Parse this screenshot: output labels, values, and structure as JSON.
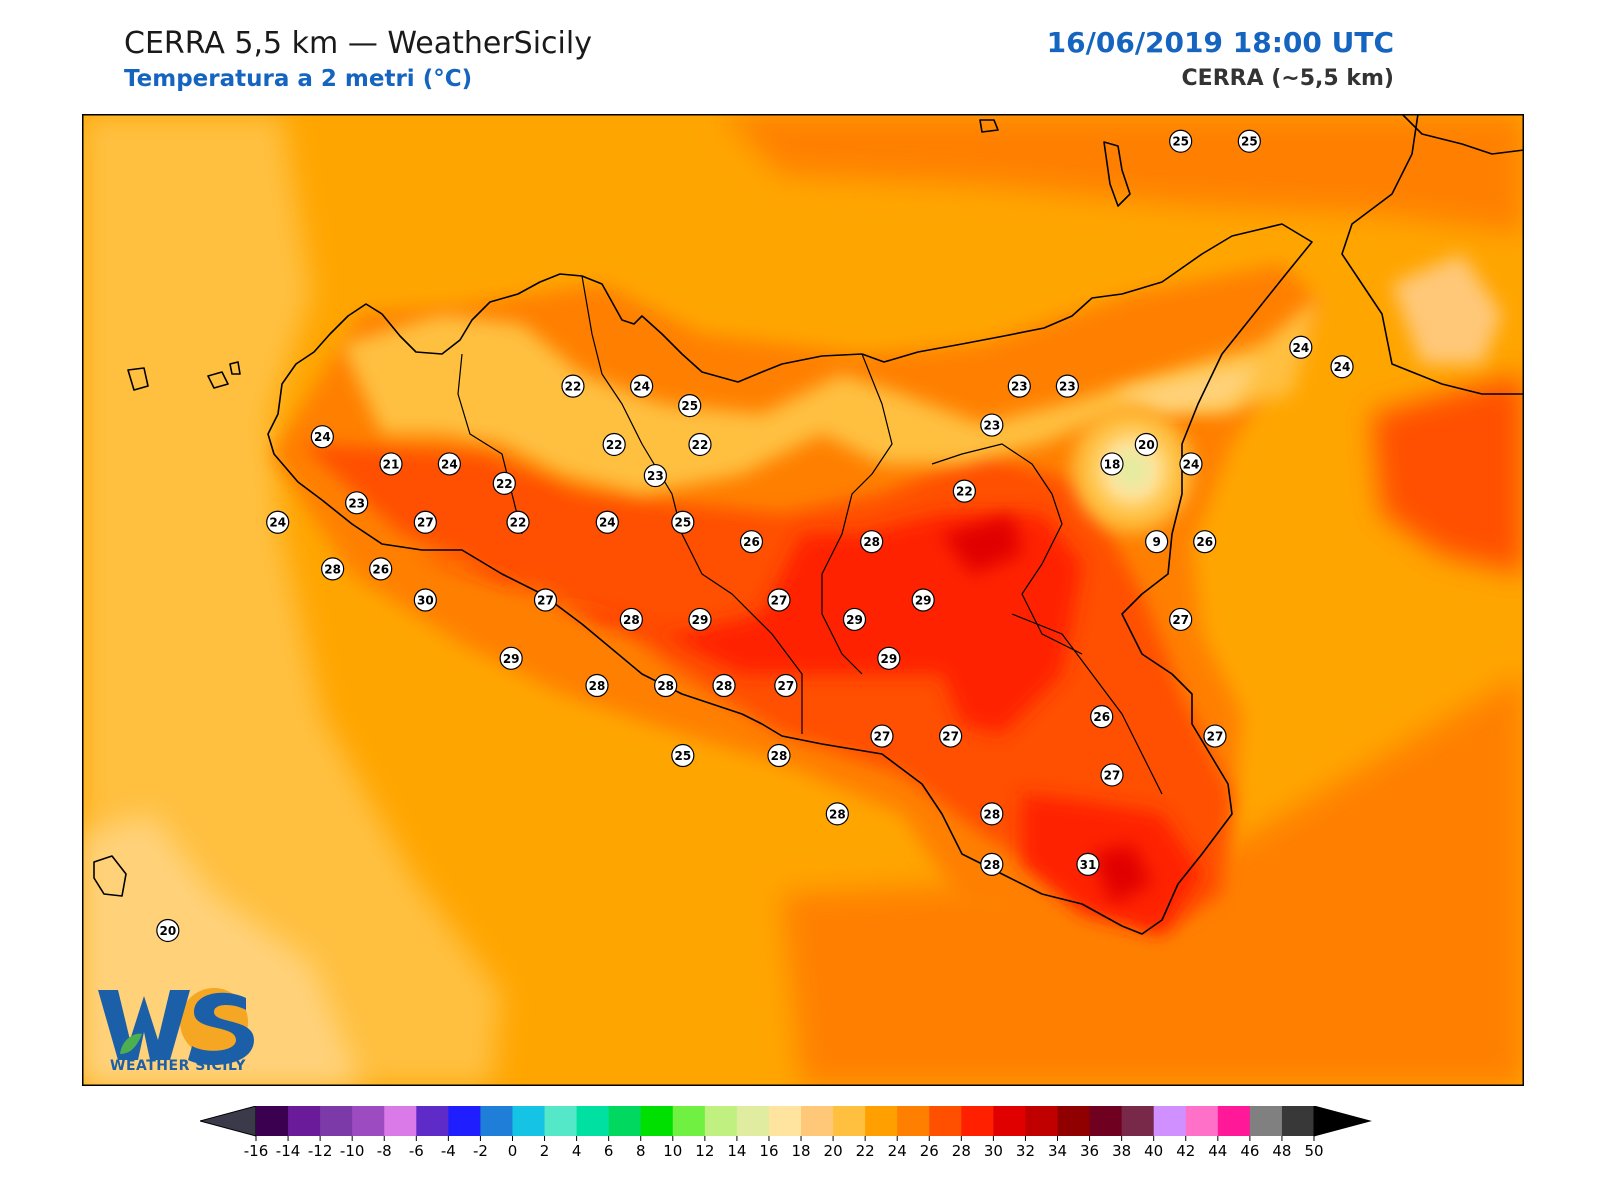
{
  "header": {
    "title": "CERRA 5,5 km — WeatherSicily",
    "subtitle": "Temperatura a 2 metri (°C)",
    "datetime": "16/06/2019 18:00 UTC",
    "model": "CERRA (~5,5 km)"
  },
  "logo": {
    "text": "WEATHER SICILY",
    "mark": "WS"
  },
  "colors": {
    "background_field": "#ffa500",
    "accent_blue": "#1565c0",
    "coastline": "#000000"
  },
  "stations": [
    {
      "value": "25",
      "lon": 15.05,
      "lat": 38.78
    },
    {
      "value": "25",
      "lon": 15.25,
      "lat": 38.78
    },
    {
      "value": "24",
      "lon": 15.4,
      "lat": 38.25
    },
    {
      "value": "24",
      "lon": 15.52,
      "lat": 38.2
    },
    {
      "value": "22",
      "lon": 13.28,
      "lat": 38.15
    },
    {
      "value": "24",
      "lon": 13.48,
      "lat": 38.15
    },
    {
      "value": "25",
      "lon": 13.62,
      "lat": 38.1
    },
    {
      "value": "24",
      "lon": 12.55,
      "lat": 38.02
    },
    {
      "value": "21",
      "lon": 12.75,
      "lat": 37.95
    },
    {
      "value": "24",
      "lon": 12.92,
      "lat": 37.95
    },
    {
      "value": "22",
      "lon": 13.08,
      "lat": 37.9
    },
    {
      "value": "22",
      "lon": 13.4,
      "lat": 38.0
    },
    {
      "value": "23",
      "lon": 13.52,
      "lat": 37.92
    },
    {
      "value": "22",
      "lon": 13.65,
      "lat": 38.0
    },
    {
      "value": "23",
      "lon": 14.58,
      "lat": 38.15
    },
    {
      "value": "23",
      "lon": 14.72,
      "lat": 38.15
    },
    {
      "value": "23",
      "lon": 14.5,
      "lat": 38.05
    },
    {
      "value": "20",
      "lon": 14.95,
      "lat": 38.0
    },
    {
      "value": "18",
      "lon": 14.85,
      "lat": 37.95
    },
    {
      "value": "24",
      "lon": 15.08,
      "lat": 37.95
    },
    {
      "value": "22",
      "lon": 14.42,
      "lat": 37.88
    },
    {
      "value": "23",
      "lon": 12.65,
      "lat": 37.85
    },
    {
      "value": "24",
      "lon": 12.42,
      "lat": 37.8
    },
    {
      "value": "27",
      "lon": 12.85,
      "lat": 37.8
    },
    {
      "value": "22",
      "lon": 13.12,
      "lat": 37.8
    },
    {
      "value": "24",
      "lon": 13.38,
      "lat": 37.8
    },
    {
      "value": "25",
      "lon": 13.6,
      "lat": 37.8
    },
    {
      "value": "26",
      "lon": 13.8,
      "lat": 37.75
    },
    {
      "value": "28",
      "lon": 14.15,
      "lat": 37.75
    },
    {
      "value": "9",
      "lon": 14.98,
      "lat": 37.75
    },
    {
      "value": "26",
      "lon": 15.12,
      "lat": 37.75
    },
    {
      "value": "28",
      "lon": 12.58,
      "lat": 37.68
    },
    {
      "value": "26",
      "lon": 12.72,
      "lat": 37.68
    },
    {
      "value": "30",
      "lon": 12.85,
      "lat": 37.6
    },
    {
      "value": "27",
      "lon": 13.2,
      "lat": 37.6
    },
    {
      "value": "28",
      "lon": 13.45,
      "lat": 37.55
    },
    {
      "value": "29",
      "lon": 13.65,
      "lat": 37.55
    },
    {
      "value": "27",
      "lon": 13.88,
      "lat": 37.6
    },
    {
      "value": "29",
      "lon": 14.1,
      "lat": 37.55
    },
    {
      "value": "29",
      "lon": 14.3,
      "lat": 37.6
    },
    {
      "value": "27",
      "lon": 15.05,
      "lat": 37.55
    },
    {
      "value": "29",
      "lon": 13.1,
      "lat": 37.45
    },
    {
      "value": "29",
      "lon": 14.2,
      "lat": 37.45
    },
    {
      "value": "28",
      "lon": 13.35,
      "lat": 37.38
    },
    {
      "value": "28",
      "lon": 13.55,
      "lat": 37.38
    },
    {
      "value": "28",
      "lon": 13.72,
      "lat": 37.38
    },
    {
      "value": "27",
      "lon": 13.9,
      "lat": 37.38
    },
    {
      "value": "26",
      "lon": 14.82,
      "lat": 37.3
    },
    {
      "value": "27",
      "lon": 14.18,
      "lat": 37.25
    },
    {
      "value": "27",
      "lon": 14.38,
      "lat": 37.25
    },
    {
      "value": "27",
      "lon": 15.15,
      "lat": 37.25
    },
    {
      "value": "25",
      "lon": 13.6,
      "lat": 37.2
    },
    {
      "value": "28",
      "lon": 13.88,
      "lat": 37.2
    },
    {
      "value": "27",
      "lon": 14.85,
      "lat": 37.15
    },
    {
      "value": "28",
      "lon": 14.5,
      "lat": 37.05
    },
    {
      "value": "28",
      "lon": 14.05,
      "lat": 37.05
    },
    {
      "value": "28",
      "lon": 14.5,
      "lat": 36.92
    },
    {
      "value": "31",
      "lon": 14.78,
      "lat": 36.92
    },
    {
      "value": "20",
      "lon": 12.1,
      "lat": 36.75
    }
  ],
  "colorbar": {
    "unit": "°C",
    "ticks": [
      "-16",
      "-14",
      "-12",
      "-10",
      "-8",
      "-6",
      "-4",
      "-2",
      "0",
      "2",
      "4",
      "6",
      "8",
      "10",
      "12",
      "14",
      "16",
      "18",
      "20",
      "22",
      "24",
      "26",
      "28",
      "30",
      "32",
      "34",
      "36",
      "38",
      "40",
      "42",
      "44",
      "46",
      "48",
      "50"
    ],
    "colors": [
      "#3b0050",
      "#6a1b9a",
      "#7b3aa8",
      "#9c4cc0",
      "#d97ae8",
      "#5e2bc8",
      "#1e1eff",
      "#1f7fd8",
      "#15c4e4",
      "#55e8c8",
      "#00e0a0",
      "#00d860",
      "#00e000",
      "#70f040",
      "#c0f080",
      "#e0eca0",
      "#ffe4a0",
      "#ffc878",
      "#ffc040",
      "#ffa000",
      "#ff8000",
      "#ff5000",
      "#ff2000",
      "#e00000",
      "#c00000",
      "#900000",
      "#700020",
      "#782848",
      "#d090ff",
      "#ff70c8",
      "#ff1898",
      "#808080",
      "#383838"
    ]
  }
}
